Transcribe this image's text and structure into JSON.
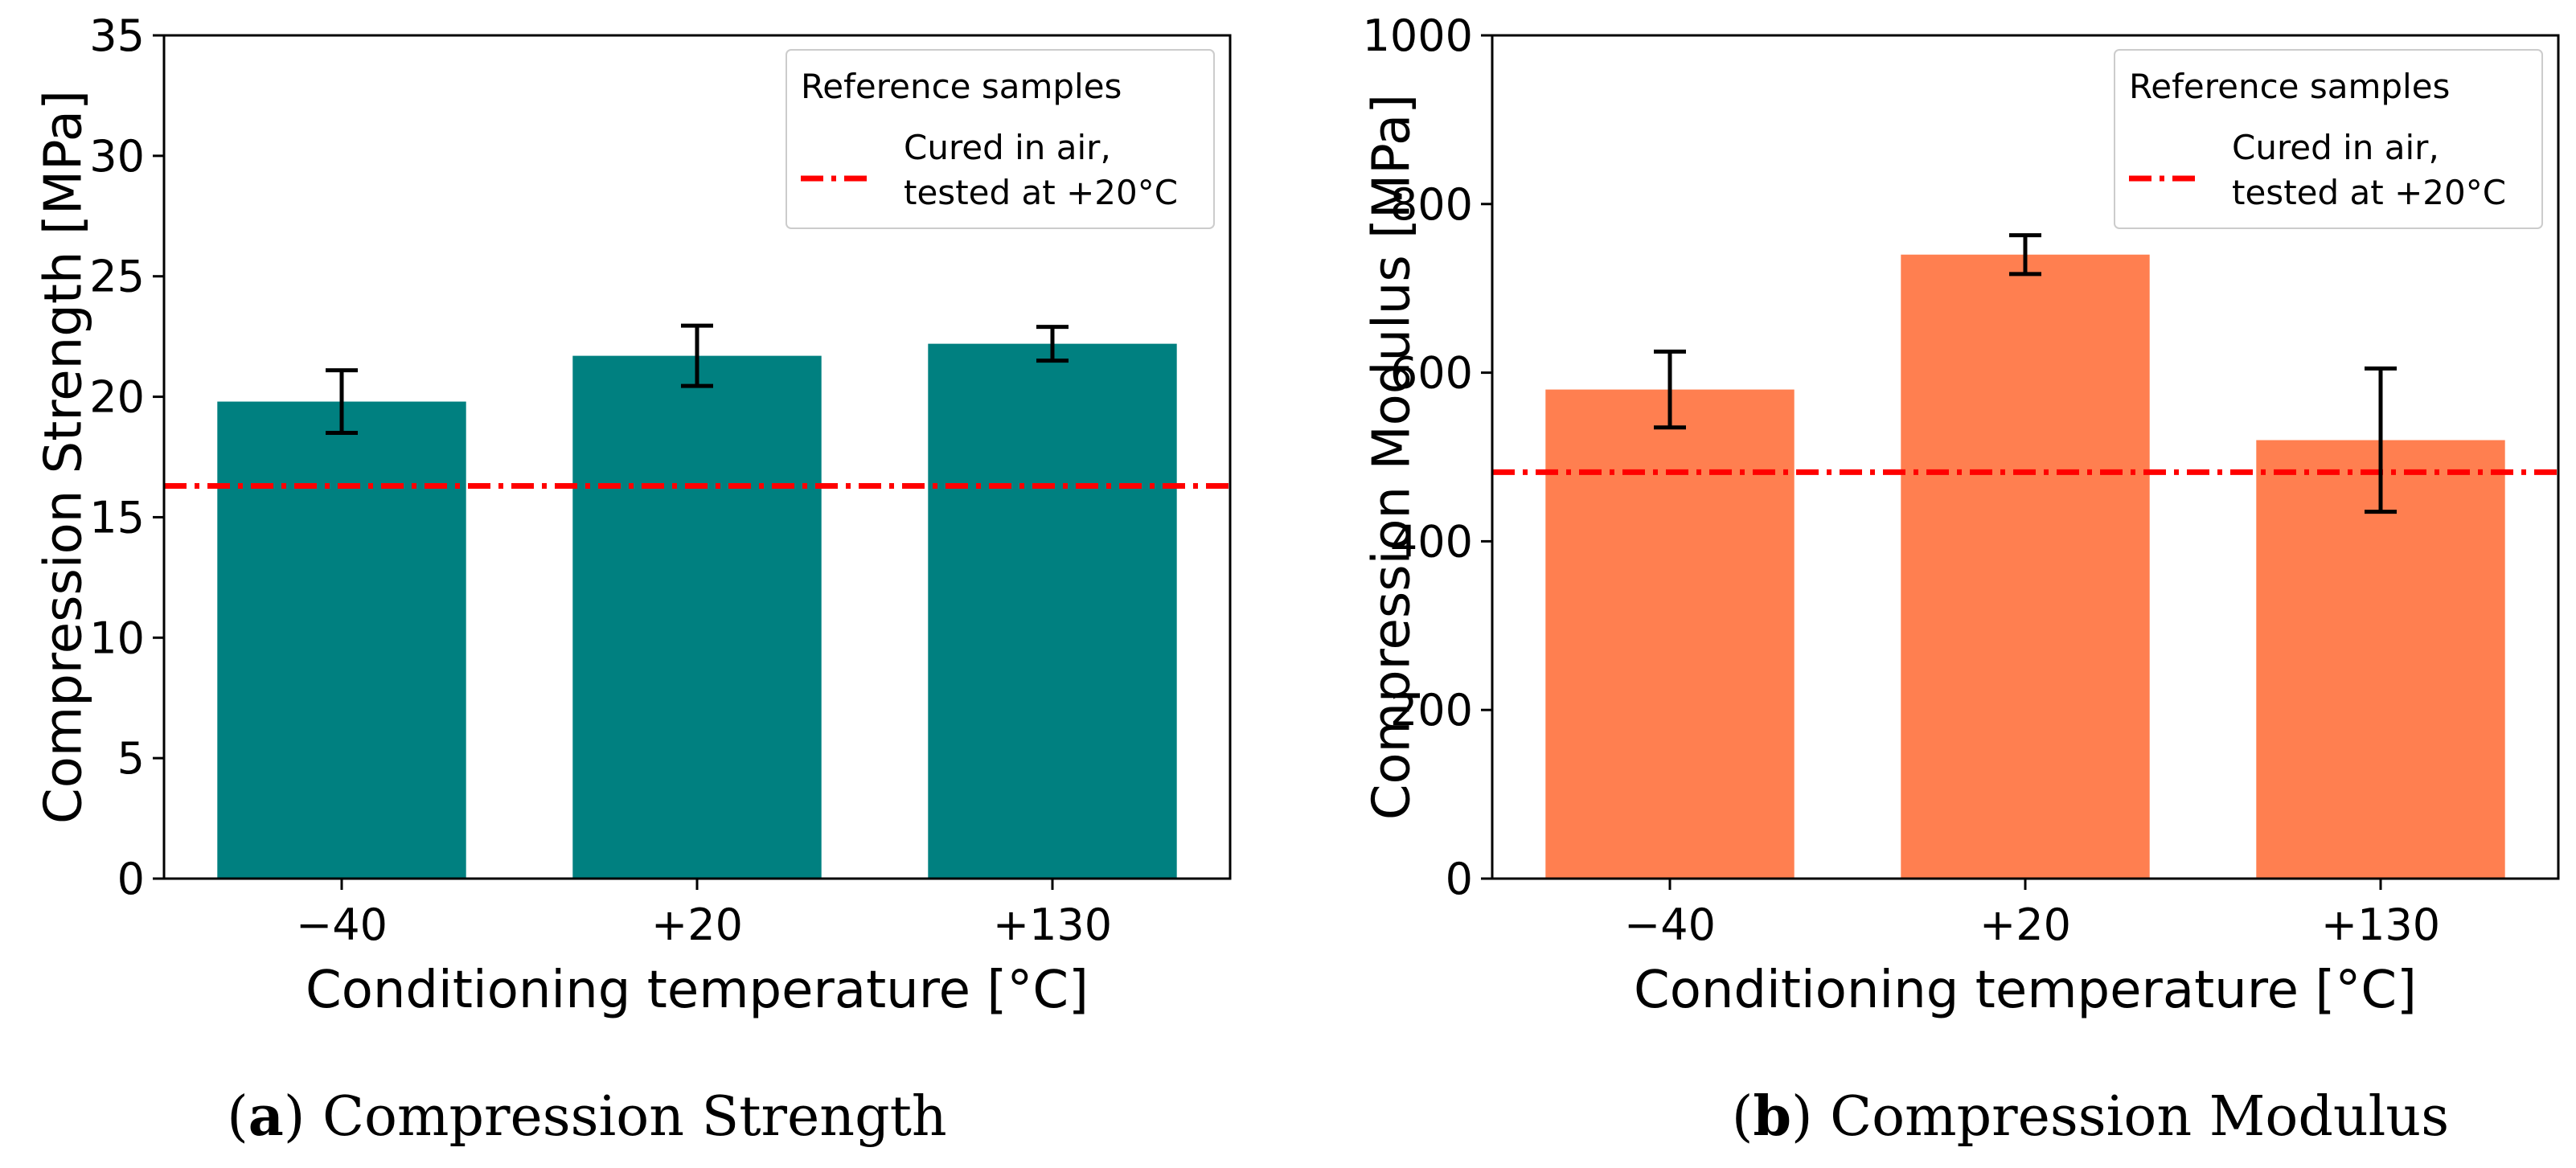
{
  "chart_data": [
    {
      "type": "bar",
      "categories": [
        "−40",
        "+20",
        "+130"
      ],
      "values": [
        19.8,
        21.7,
        22.2
      ],
      "errors": [
        1.3,
        1.25,
        0.7
      ],
      "bar_color": "#008080",
      "xlabel": "Conditioning temperature [°C]",
      "ylabel": "Compression Strength [MPa]",
      "ylim": [
        0,
        35
      ],
      "yticks": [
        0,
        5,
        10,
        15,
        20,
        25,
        30,
        35
      ],
      "reference": {
        "value": 16.3,
        "color": "#ff0000"
      },
      "legend": {
        "placement": "top-right",
        "title": "Reference samples",
        "entry_line1": "Cured in air,",
        "entry_line2": "tested at +20°C"
      },
      "caption": {
        "letter": "a",
        "text": "Compression Strength"
      }
    },
    {
      "type": "bar",
      "categories": [
        "−40",
        "+20",
        "+130"
      ],
      "values": [
        580,
        740,
        520
      ],
      "errors": [
        45,
        23,
        85
      ],
      "bar_color": "#ff7f50",
      "xlabel": "Conditioning temperature [°C]",
      "ylabel": "Compression Modulus [MPa]",
      "ylim": [
        0,
        1000
      ],
      "yticks": [
        0,
        200,
        400,
        600,
        800,
        1000
      ],
      "reference": {
        "value": 482,
        "color": "#ff0000"
      },
      "legend": {
        "placement": "top-right",
        "title": "Reference samples",
        "entry_line1": "Cured in air,",
        "entry_line2": "tested at +20°C"
      },
      "caption": {
        "letter": "b",
        "text": "Compression Modulus"
      }
    }
  ]
}
